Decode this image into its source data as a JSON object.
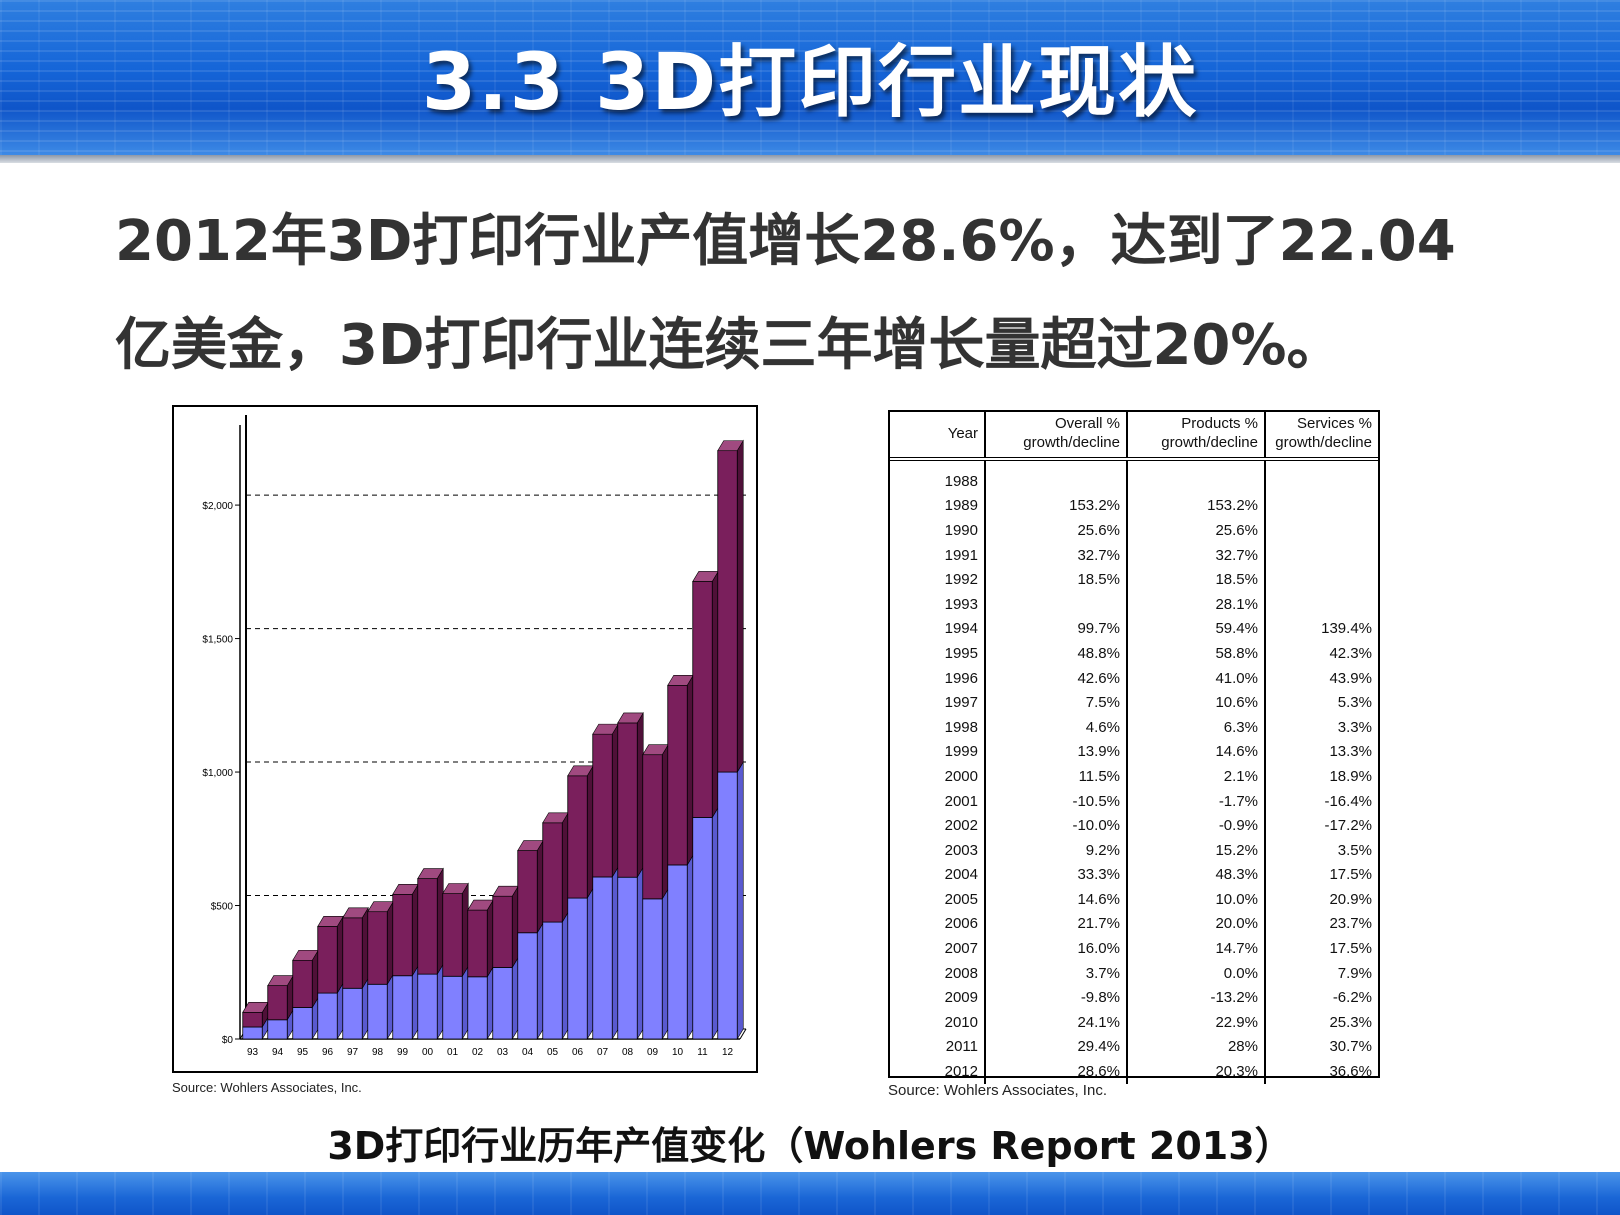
{
  "slide": {
    "title": "3.3  3D打印行业现状",
    "headline_line1": "2012年3D打印行业产值增长28.6%，达到了22.04",
    "headline_line2": "亿美金，3D打印行业连续三年增长量超过20%。",
    "caption": "3D打印行业历年产值变化（Wohlers Report 2013）",
    "colors": {
      "banner_blue": "#1565d8",
      "bar_top": "#7a1f5c",
      "bar_bottom": "#8080ff"
    }
  },
  "chart_source": "Source: Wohlers Associates, Inc.",
  "chart_data": {
    "type": "bar",
    "stacked": true,
    "categories": [
      "93",
      "94",
      "95",
      "96",
      "97",
      "98",
      "99",
      "00",
      "01",
      "02",
      "03",
      "04",
      "05",
      "06",
      "07",
      "08",
      "09",
      "10",
      "11",
      "12"
    ],
    "series": [
      {
        "values": [
          45,
          72,
          118,
          172,
          190,
          205,
          237,
          243,
          235,
          233,
          268,
          398,
          438,
          528,
          607,
          606,
          525,
          652,
          830,
          1000
        ]
      },
      {
        "values": [
          55,
          128,
          177,
          250,
          264,
          272,
          305,
          358,
          310,
          250,
          267,
          308,
          372,
          458,
          535,
          578,
          540,
          673,
          884,
          1204
        ]
      }
    ],
    "yticks": [
      "$0",
      "$500",
      "$1,000",
      "$1,500",
      "$2,000"
    ],
    "ylim": [
      0,
      2300
    ],
    "grid": "dashed horizontal"
  },
  "table": {
    "source": "Source: Wohlers Associates, Inc.",
    "headers": [
      [
        "Year",
        ""
      ],
      [
        "Overall %",
        "growth/decline"
      ],
      [
        "Products %",
        "growth/decline"
      ],
      [
        "Services %",
        "growth/decline"
      ]
    ],
    "rows": [
      [
        "1988",
        "",
        "",
        ""
      ],
      [
        "1989",
        "153.2%",
        "153.2%",
        ""
      ],
      [
        "1990",
        "25.6%",
        "25.6%",
        ""
      ],
      [
        "1991",
        "32.7%",
        "32.7%",
        ""
      ],
      [
        "1992",
        "18.5%",
        "18.5%",
        ""
      ],
      [
        "1993",
        "",
        "28.1%",
        ""
      ],
      [
        "1994",
        "99.7%",
        "59.4%",
        "139.4%"
      ],
      [
        "1995",
        "48.8%",
        "58.8%",
        "42.3%"
      ],
      [
        "1996",
        "42.6%",
        "41.0%",
        "43.9%"
      ],
      [
        "1997",
        "7.5%",
        "10.6%",
        "5.3%"
      ],
      [
        "1998",
        "4.6%",
        "6.3%",
        "3.3%"
      ],
      [
        "1999",
        "13.9%",
        "14.6%",
        "13.3%"
      ],
      [
        "2000",
        "11.5%",
        "2.1%",
        "18.9%"
      ],
      [
        "2001",
        "-10.5%",
        "-1.7%",
        "-16.4%"
      ],
      [
        "2002",
        "-10.0%",
        "-0.9%",
        "-17.2%"
      ],
      [
        "2003",
        "9.2%",
        "15.2%",
        "3.5%"
      ],
      [
        "2004",
        "33.3%",
        "48.3%",
        "17.5%"
      ],
      [
        "2005",
        "14.6%",
        "10.0%",
        "20.9%"
      ],
      [
        "2006",
        "21.7%",
        "20.0%",
        "23.7%"
      ],
      [
        "2007",
        "16.0%",
        "14.7%",
        "17.5%"
      ],
      [
        "2008",
        "3.7%",
        "0.0%",
        "7.9%"
      ],
      [
        "2009",
        "-9.8%",
        "-13.2%",
        "-6.2%"
      ],
      [
        "2010",
        "24.1%",
        "22.9%",
        "25.3%"
      ],
      [
        "2011",
        "29.4%",
        "28%",
        "30.7%"
      ],
      [
        "2012",
        "28.6%",
        "20.3%",
        "36.6%"
      ]
    ]
  }
}
